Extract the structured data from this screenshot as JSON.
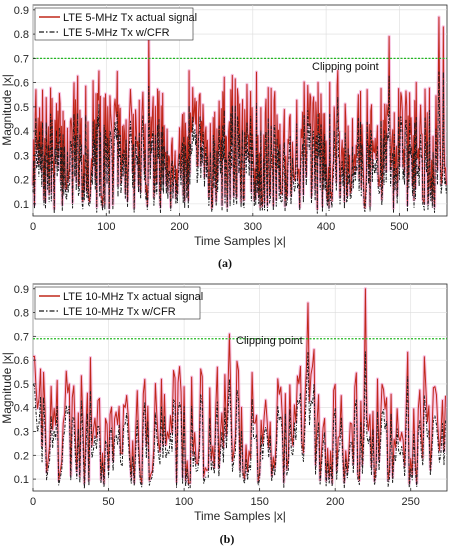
{
  "chart_data": [
    {
      "type": "line",
      "panel_label": "(a)",
      "xlabel": "Time Samples |x|",
      "ylabel": "Magnitude |x|",
      "xlim": [
        0,
        565
      ],
      "ylim": [
        0.05,
        0.92
      ],
      "xticks": [
        0,
        100,
        200,
        300,
        400,
        500
      ],
      "yticks": [
        0.1,
        0.2,
        0.3,
        0.4,
        0.5,
        0.6,
        0.7,
        0.8,
        0.9
      ],
      "grid": true,
      "legend_position": "top-left",
      "clipping": {
        "label": "Clipping point",
        "value": 0.7
      },
      "colors": {
        "actual": "#c0281a",
        "actual_fill": "#f08cc8",
        "cfr": "#1a1a1a",
        "clip": "#22b822"
      },
      "series": [
        {
          "name": "LTE 5-MHz Tx actual signal",
          "style": "solid",
          "color": "#c0281a"
        },
        {
          "name": "LTE 5-MHz Tx w/CFR",
          "style": "dash-dot",
          "color": "#1a1a1a"
        }
      ],
      "peaks": [
        {
          "x": 158,
          "y": 0.81
        },
        {
          "x": 486,
          "y": 0.79
        },
        {
          "x": 554,
          "y": 0.87
        },
        {
          "x": 560,
          "y": 0.83
        }
      ],
      "n_samples": 565,
      "seed": 7
    },
    {
      "type": "line",
      "panel_label": "(b)",
      "xlabel": "Time Samples |x|",
      "ylabel": "Magnitude |x|",
      "xlim": [
        0,
        274
      ],
      "ylim": [
        0.05,
        0.92
      ],
      "xticks": [
        0,
        50,
        100,
        150,
        200,
        250
      ],
      "yticks": [
        0.1,
        0.2,
        0.3,
        0.4,
        0.5,
        0.6,
        0.7,
        0.8,
        0.9
      ],
      "grid": true,
      "legend_position": "top-left",
      "clipping": {
        "label": "Clipping point",
        "value": 0.69
      },
      "colors": {
        "actual": "#c0281a",
        "actual_fill": "#f08cc8",
        "cfr": "#1a1a1a",
        "clip": "#22b822"
      },
      "series": [
        {
          "name": "LTE 10-MHz Tx actual signal",
          "style": "solid",
          "color": "#c0281a"
        },
        {
          "name": "LTE 10-MHz Tx w/CFR",
          "style": "dash-dot",
          "color": "#1a1a1a"
        }
      ],
      "peaks": [
        {
          "x": 130,
          "y": 0.71
        },
        {
          "x": 182,
          "y": 0.84
        },
        {
          "x": 220,
          "y": 0.9
        }
      ],
      "n_samples": 274,
      "seed": 19
    }
  ]
}
